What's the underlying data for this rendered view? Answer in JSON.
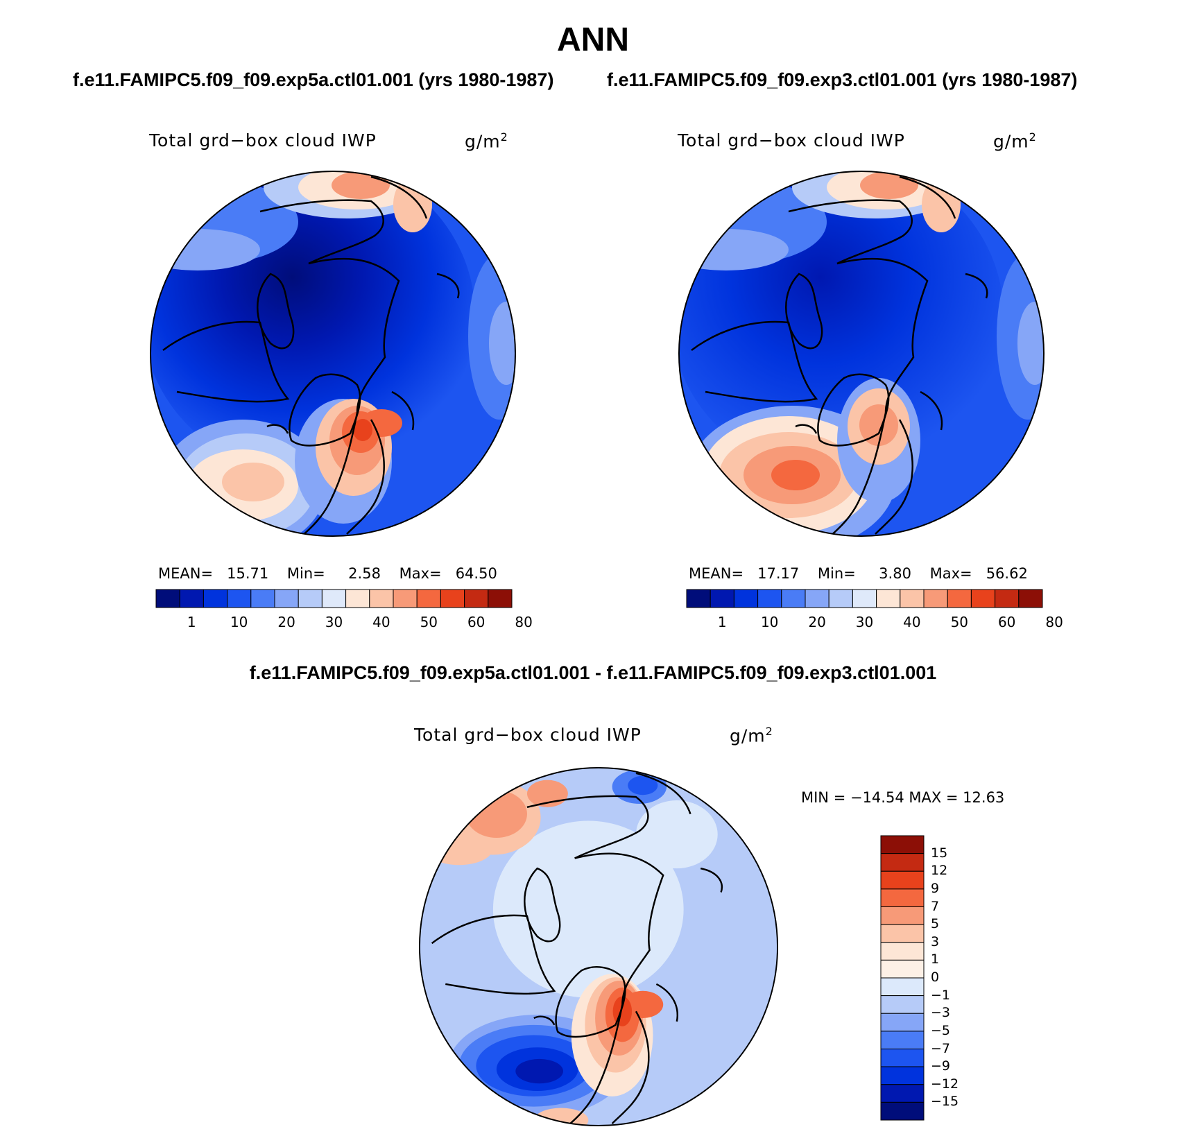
{
  "title": "ANN",
  "panels": [
    {
      "case_title": "f.e11.FAMIPC5.f09_f09.exp5a.ctl01.001 (yrs 1980-1987)",
      "variable_label": "Total grd−box cloud IWP",
      "units_base": "g/m",
      "units_exp": "2",
      "stats": {
        "mean_label": "MEAN=",
        "mean": "15.71",
        "min_label": "Min=",
        "min": "2.58",
        "max_label": "Max=",
        "max": "64.50"
      }
    },
    {
      "case_title": "f.e11.FAMIPC5.f09_f09.exp3.ctl01.001 (yrs 1980-1987)",
      "variable_label": "Total grd−box cloud IWP",
      "units_base": "g/m",
      "units_exp": "2",
      "stats": {
        "mean_label": "MEAN=",
        "mean": "17.17",
        "min_label": "Min=",
        "min": "3.80",
        "max_label": "Max=",
        "max": "56.62"
      }
    }
  ],
  "colorbar_levels": [
    "1",
    "10",
    "20",
    "30",
    "40",
    "50",
    "60",
    "80"
  ],
  "colorbar_colors": [
    "#000d7a",
    "#0018b0",
    "#0033dd",
    "#1d55f0",
    "#4a7cf6",
    "#86a6f7",
    "#b6cbf8",
    "#dfe9fa",
    "#fde6d6",
    "#fbc4a8",
    "#f79a78",
    "#f4683f",
    "#e8421c",
    "#c42a12",
    "#8c0f06"
  ],
  "difference": {
    "title": "f.e11.FAMIPC5.f09_f09.exp5a.ctl01.001 - f.e11.FAMIPC5.f09_f09.exp3.ctl01.001",
    "variable_label": "Total grd−box cloud IWP",
    "units_base": "g/m",
    "units_exp": "2",
    "minmax": "MIN = −14.54 MAX =   12.63",
    "levels": [
      "15",
      "12",
      "9",
      "7",
      "5",
      "3",
      "1",
      "0",
      "−1",
      "−3",
      "−5",
      "−7",
      "−9",
      "−12",
      "−15"
    ],
    "colors": [
      "#8c0f06",
      "#c42a12",
      "#e8421c",
      "#f4683f",
      "#f79a78",
      "#fbc4a8",
      "#fde6d6",
      "#fdf0e6",
      "#dce9fb",
      "#b6cbf8",
      "#86a6f7",
      "#4a7cf6",
      "#1d55f0",
      "#0033dd",
      "#0018b0",
      "#000d7a"
    ]
  }
}
